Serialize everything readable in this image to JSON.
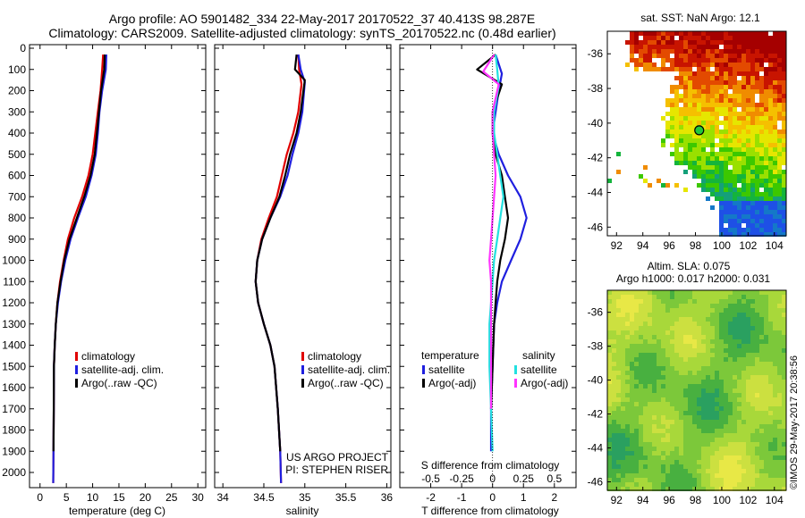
{
  "header": {
    "line1": "Argo profile: AO 5901482_334 22-May-2017 20170522_37 40.413S 98.287E",
    "line2": "Climatology: CARS2009. Satellite-adjusted climatology: synTS_20170522.nc (0.48d earlier)"
  },
  "colors": {
    "climatology": "#e00000",
    "satellite": "#1f1fdf",
    "argo": "#000000",
    "salinity_satellite": "#22e0e0",
    "salinity_argo": "#ff33ff"
  },
  "chart_data": [
    {
      "type": "line",
      "panel": "temperature",
      "xlabel": "temperature (deg C)",
      "xticks": [
        0,
        5,
        10,
        15,
        20,
        25,
        30
      ],
      "xlim": [
        -2,
        31.5
      ],
      "yticks": [
        0,
        100,
        200,
        300,
        400,
        500,
        600,
        700,
        800,
        900,
        1000,
        1100,
        1200,
        1300,
        1400,
        1500,
        1600,
        1700,
        1800,
        1900,
        2000
      ],
      "ylim": [
        0,
        2050
      ],
      "y_reversed": true,
      "legend": [
        "climatology",
        "satellite-adj. clim.",
        "Argo(..raw -QC)"
      ],
      "series": [
        {
          "name": "climatology",
          "color": "#e00000",
          "x": [
            12.0,
            11.8,
            11.5,
            11.0,
            10.5,
            10.0,
            9.2,
            8.0,
            6.5,
            5.3,
            4.5,
            3.8,
            3.3,
            3.0,
            2.8,
            2.65,
            2.6,
            2.55,
            2.5
          ],
          "y": [
            30,
            100,
            200,
            300,
            400,
            500,
            600,
            700,
            800,
            900,
            1000,
            1100,
            1200,
            1300,
            1400,
            1500,
            1700,
            1900,
            2050
          ]
        },
        {
          "name": "satellite-adj. clim.",
          "color": "#1f1fdf",
          "x": [
            12.6,
            12.5,
            11.8,
            11.3,
            11.0,
            10.6,
            9.8,
            8.7,
            7.2,
            5.8,
            4.8,
            4.0,
            3.4,
            3.0,
            2.8,
            2.65,
            2.6,
            2.55,
            2.5
          ],
          "y": [
            30,
            100,
            200,
            300,
            400,
            500,
            600,
            700,
            800,
            900,
            1000,
            1100,
            1200,
            1300,
            1400,
            1500,
            1700,
            1900,
            2050
          ]
        },
        {
          "name": "Argo(..raw -QC)",
          "color": "#000000",
          "x": [
            12.3,
            12.2,
            11.6,
            11.2,
            10.8,
            10.4,
            9.6,
            8.4,
            7.0,
            5.6,
            4.6,
            3.9,
            3.3,
            3.0,
            2.8,
            2.65,
            2.6,
            2.55
          ],
          "y": [
            30,
            100,
            200,
            300,
            400,
            500,
            600,
            700,
            800,
            900,
            1000,
            1100,
            1200,
            1300,
            1400,
            1500,
            1700,
            1900
          ]
        }
      ]
    },
    {
      "type": "line",
      "panel": "salinity",
      "xlabel": "salinity",
      "xticks": [
        34,
        34.5,
        35,
        35.5,
        36
      ],
      "xticklabels": [
        "34",
        "34.5",
        "35",
        "35.5",
        "36"
      ],
      "xlim": [
        33.9,
        36.05
      ],
      "ylim": [
        0,
        2050
      ],
      "y_reversed": true,
      "legend": [
        "climatology",
        "satellite-adj. clim.",
        "Argo(..raw -QC)"
      ],
      "annotation": [
        "US ARGO PROJECT",
        "PI: STEPHEN RISER"
      ],
      "series": [
        {
          "name": "climatology",
          "color": "#e00000",
          "x": [
            34.92,
            34.93,
            34.96,
            34.92,
            34.86,
            34.78,
            34.72,
            34.66,
            34.56,
            34.47,
            34.42,
            34.4,
            34.43,
            34.5,
            34.58,
            34.63,
            34.67,
            34.7,
            34.71
          ],
          "y": [
            30,
            100,
            170,
            300,
            400,
            500,
            600,
            700,
            800,
            900,
            1000,
            1100,
            1200,
            1300,
            1400,
            1500,
            1700,
            1900,
            2050
          ]
        },
        {
          "name": "satellite-adj. clim.",
          "color": "#1f1fdf",
          "x": [
            34.92,
            34.95,
            35.0,
            34.97,
            34.92,
            34.85,
            34.79,
            34.7,
            34.58,
            34.48,
            34.42,
            34.4,
            34.43,
            34.5,
            34.58,
            34.63,
            34.67,
            34.7,
            34.71
          ],
          "y": [
            30,
            100,
            160,
            300,
            400,
            500,
            600,
            700,
            800,
            900,
            1000,
            1100,
            1200,
            1300,
            1400,
            1500,
            1700,
            1900,
            2050
          ]
        },
        {
          "name": "Argo(..raw -QC)",
          "color": "#000000",
          "x": [
            34.9,
            34.88,
            35.0,
            34.95,
            34.9,
            34.82,
            34.76,
            34.69,
            34.58,
            34.48,
            34.42,
            34.4,
            34.43,
            34.5,
            34.58,
            34.63,
            34.67,
            34.7
          ],
          "y": [
            30,
            100,
            150,
            300,
            400,
            500,
            600,
            700,
            800,
            900,
            1000,
            1100,
            1200,
            1300,
            1400,
            1500,
            1700,
            1900
          ]
        }
      ]
    },
    {
      "type": "line",
      "panel": "difference",
      "xlabel": "T difference from climatology",
      "xlabel_top": "S difference from climatology",
      "xticks": [
        -2,
        -1,
        0,
        1,
        2
      ],
      "top_ticks": [
        -0.5,
        -0.25,
        0,
        0.25,
        0.5
      ],
      "top_ticklabels": [
        "-0.5",
        "-0.25",
        "0",
        "0.25",
        "0.5"
      ],
      "xlim": [
        -3.0,
        2.7
      ],
      "ylim": [
        0,
        2050
      ],
      "y_reversed": true,
      "legend_groups": [
        {
          "title": "temperature",
          "items": [
            {
              "label": "satellite",
              "color": "#1f1fdf"
            },
            {
              "label": "Argo(-adj)",
              "color": "#000000"
            }
          ]
        },
        {
          "title": "salinity",
          "items": [
            {
              "label": "satellite",
              "color": "#22e0e0"
            },
            {
              "label": "Argo(-adj)",
              "color": "#ff33ff"
            }
          ]
        }
      ],
      "series": [
        {
          "name": "T satellite",
          "color": "#1f1fdf",
          "x": [
            0.1,
            0.3,
            0.2,
            0.1,
            0,
            0.2,
            0.5,
            0.9,
            1.1,
            0.9,
            0.6,
            0.3,
            0.15,
            0.05,
            0,
            -0.05,
            -0.05
          ],
          "y": [
            30,
            120,
            200,
            300,
            400,
            500,
            600,
            700,
            800,
            900,
            1000,
            1100,
            1200,
            1300,
            1500,
            1700,
            1900
          ]
        },
        {
          "name": "T Argo(-adj)",
          "color": "#000000",
          "x": [
            0.1,
            -0.5,
            0.3,
            0,
            0,
            0.1,
            0.3,
            0.4,
            0.5,
            0.4,
            0.25,
            0.15,
            0.1,
            0.05,
            0,
            -0.05
          ],
          "y": [
            30,
            100,
            170,
            300,
            400,
            500,
            600,
            700,
            800,
            900,
            1000,
            1100,
            1200,
            1300,
            1500,
            1700
          ]
        },
        {
          "name": "S satellite",
          "color": "#22e0e0",
          "x": [
            0.1,
            0.15,
            0.2,
            0.05,
            0.05,
            0.15,
            0.25,
            0.35,
            0.25,
            0.15,
            0.05,
            0,
            -0.05,
            -0.1,
            -0.1,
            -0.05,
            0
          ],
          "y": [
            30,
            100,
            180,
            300,
            400,
            500,
            600,
            700,
            800,
            900,
            1000,
            1100,
            1200,
            1300,
            1500,
            1700,
            1900
          ]
        },
        {
          "name": "S Argo(-adj)",
          "color": "#ff33ff",
          "x": [
            0.05,
            -0.3,
            0.2,
            0,
            0,
            0.05,
            0.1,
            0.05,
            0,
            -0.05,
            -0.1,
            -0.05,
            -0.05,
            -0.05,
            -0.05,
            -0.05
          ],
          "y": [
            30,
            110,
            170,
            300,
            400,
            500,
            600,
            700,
            800,
            900,
            1000,
            1100,
            1200,
            1300,
            1500,
            1700
          ]
        }
      ]
    },
    {
      "type": "heatmap",
      "panel": "sst-map",
      "title": "sat. SST: NaN Argo: 12.1",
      "xticks": [
        92,
        94,
        96,
        98,
        100,
        102,
        104
      ],
      "yticks": [
        -36,
        -38,
        -40,
        -42,
        -44,
        -46
      ],
      "xlim": [
        91.3,
        104.9
      ],
      "ylim": [
        -46.5,
        -34.7
      ],
      "marker": {
        "lon": 98.287,
        "lat": -40.413
      }
    },
    {
      "type": "heatmap",
      "panel": "sla-map",
      "title_line1": "Altim. SLA: 0.075",
      "title_line2": "Argo h1000: 0.017 h2000: 0.031",
      "xticks": [
        92,
        94,
        96,
        98,
        100,
        102,
        104
      ],
      "yticks": [
        -36,
        -38,
        -40,
        -42,
        -44,
        -46
      ],
      "xlim": [
        91.3,
        104.9
      ],
      "ylim": [
        -46.5,
        -34.7
      ]
    }
  ],
  "footer": {
    "credit": "©IMOS 29-May-2017 20:38:56"
  }
}
